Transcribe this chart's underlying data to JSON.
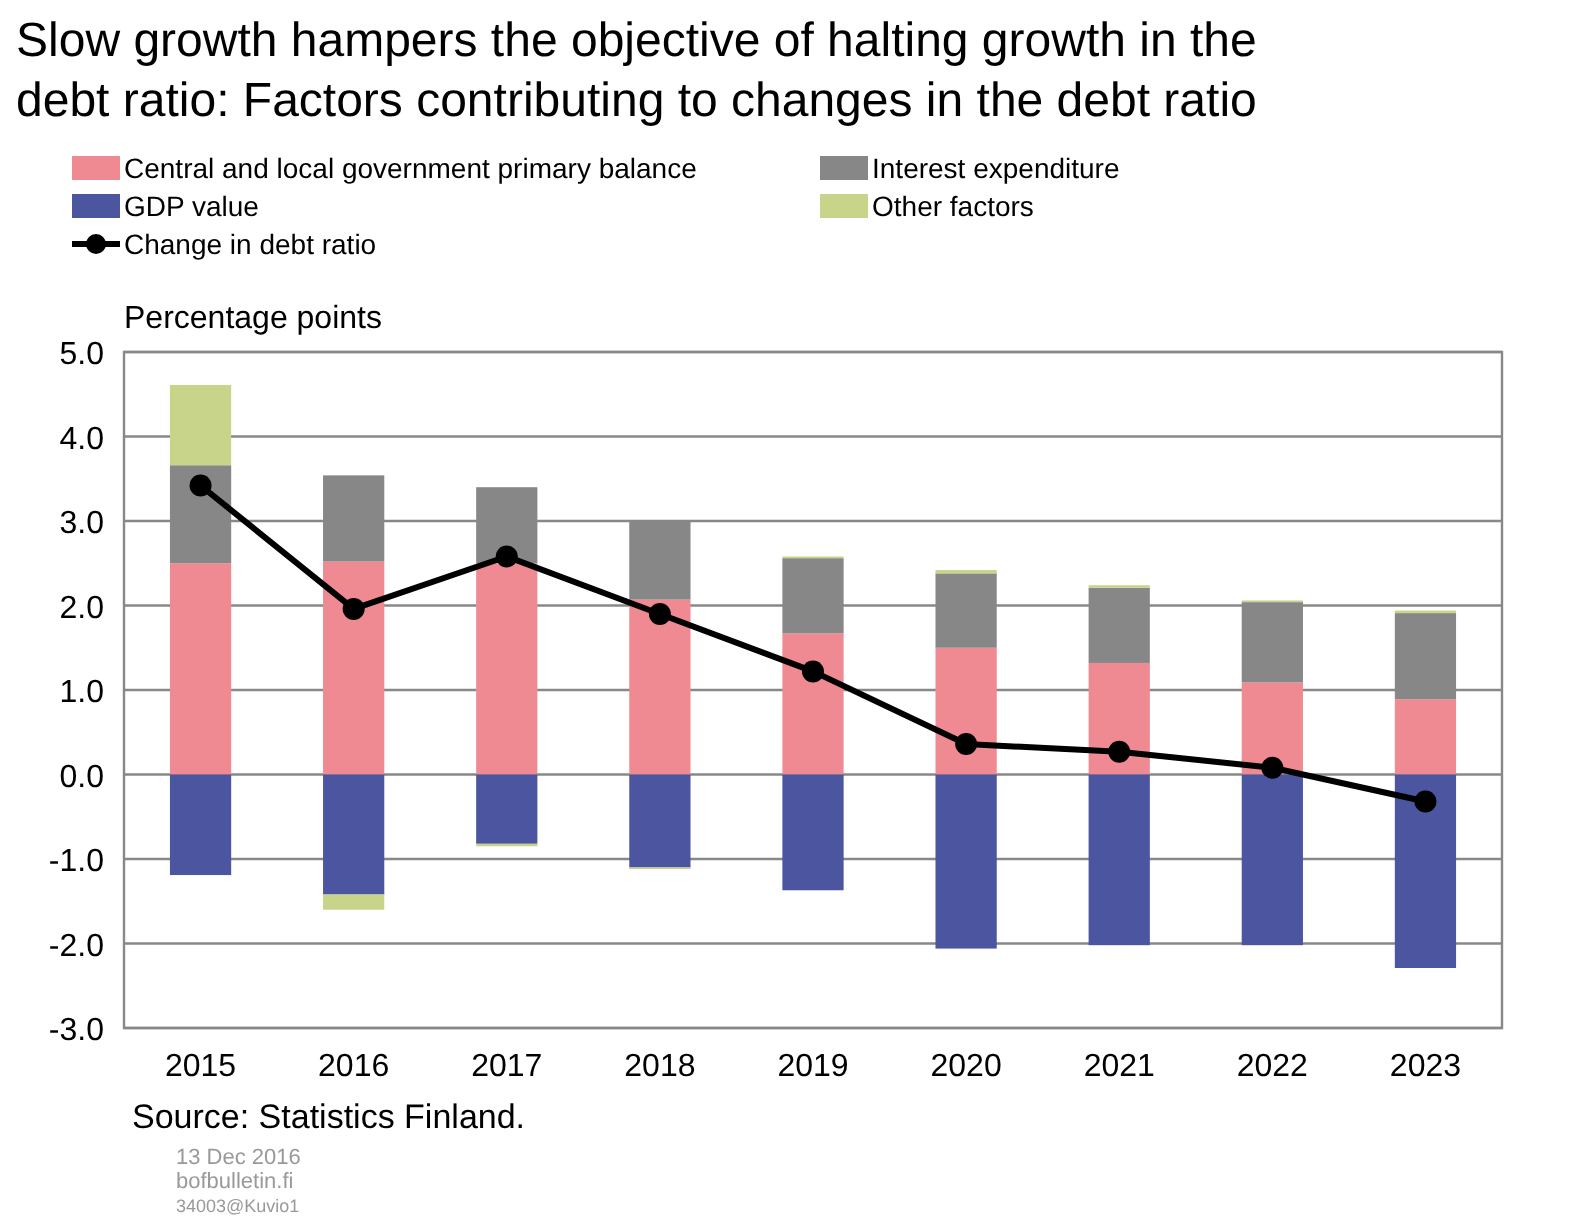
{
  "chart_data": {
    "type": "bar",
    "stacked": true,
    "title": "Slow growth hampers the objective of halting growth in the debt ratio: Factors contributing to changes in the debt ratio",
    "ylabel": "Percentage points",
    "categories": [
      "2015",
      "2016",
      "2017",
      "2018",
      "2019",
      "2020",
      "2021",
      "2022",
      "2023"
    ],
    "series": [
      {
        "name": "Central and local government primary balance",
        "color": "#f08a92",
        "values": [
          2.5,
          2.52,
          2.5,
          2.07,
          1.67,
          1.5,
          1.32,
          1.09,
          0.89
        ]
      },
      {
        "name": "Interest expenditure",
        "color": "#878787",
        "values": [
          1.16,
          1.02,
          0.9,
          0.94,
          0.89,
          0.88,
          0.89,
          0.95,
          1.02
        ]
      },
      {
        "name": "GDP value",
        "color": "#4b55a0",
        "values": [
          -1.19,
          -1.42,
          -0.82,
          -1.1,
          -1.37,
          -2.06,
          -2.02,
          -2.02,
          -2.29
        ]
      },
      {
        "name": "Other factors",
        "color": "#c8d48a",
        "values": [
          0.95,
          -0.18,
          -0.03,
          -0.02,
          0.02,
          0.04,
          0.03,
          0.02,
          0.03
        ]
      },
      {
        "name": "Change in debt ratio",
        "type": "line",
        "color": "#000000",
        "marker": "circle",
        "values": [
          3.42,
          1.96,
          2.58,
          1.9,
          1.22,
          0.36,
          0.27,
          0.08,
          -0.32
        ]
      }
    ],
    "ylim": [
      -3,
      5
    ],
    "yticks": [
      {
        "value": -3,
        "label": "-3.0"
      },
      {
        "value": -2,
        "label": "-2.0"
      },
      {
        "value": -1,
        "label": "-1.0"
      },
      {
        "value": 0,
        "label": "0.0"
      },
      {
        "value": 1,
        "label": "1.0"
      },
      {
        "value": 2,
        "label": "2.0"
      },
      {
        "value": 3,
        "label": "3.0"
      },
      {
        "value": 4,
        "label": "4.0"
      },
      {
        "value": 5,
        "label": "5.0"
      }
    ],
    "grid": "y",
    "legend": "top left",
    "annotations": [
      "Source: Statistics Finland.",
      "13 Dec 2016",
      "bofbulletin.fi",
      "34003@Kuvio1"
    ]
  }
}
